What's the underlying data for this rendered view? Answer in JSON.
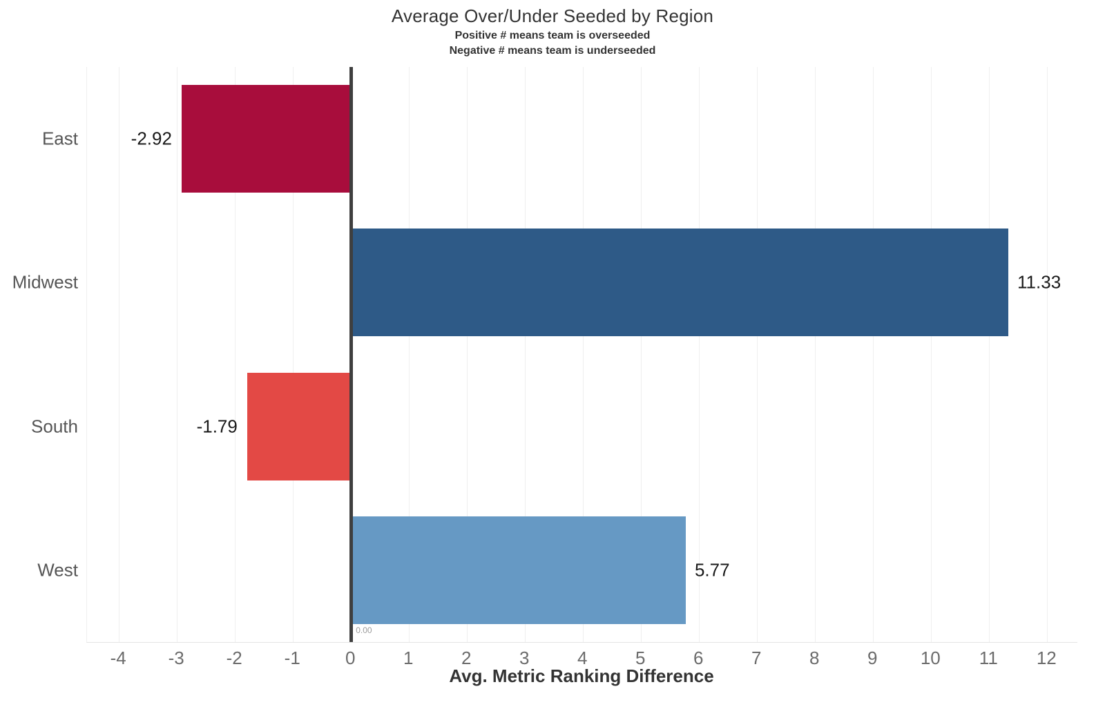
{
  "chart_data": {
    "type": "bar",
    "orientation": "horizontal",
    "title": "Average Over/Under Seeded by Region",
    "subtitle_lines": [
      "Positive # means team is overseeded",
      "Negative # means team is underseeded"
    ],
    "xlabel": "Avg. Metric Ranking Difference",
    "categories": [
      "East",
      "Midwest",
      "South",
      "West"
    ],
    "values": [
      -2.92,
      11.33,
      -1.79,
      5.77
    ],
    "value_labels": [
      "-2.92",
      "11.33",
      "-1.79",
      "5.77"
    ],
    "bar_colors": [
      "#A80D3C",
      "#2E5A87",
      "#E34945",
      "#6699C4"
    ],
    "x_ticks": [
      -4,
      -3,
      -2,
      -1,
      0,
      1,
      2,
      3,
      4,
      5,
      6,
      7,
      8,
      9,
      10,
      11,
      12
    ],
    "xlim": [
      -4.55,
      12.52
    ],
    "grid": true,
    "legend": "none",
    "zero_line_label": "0.00",
    "zero_line_color": "#3f3f3f",
    "gridline_color": "#efefef"
  }
}
